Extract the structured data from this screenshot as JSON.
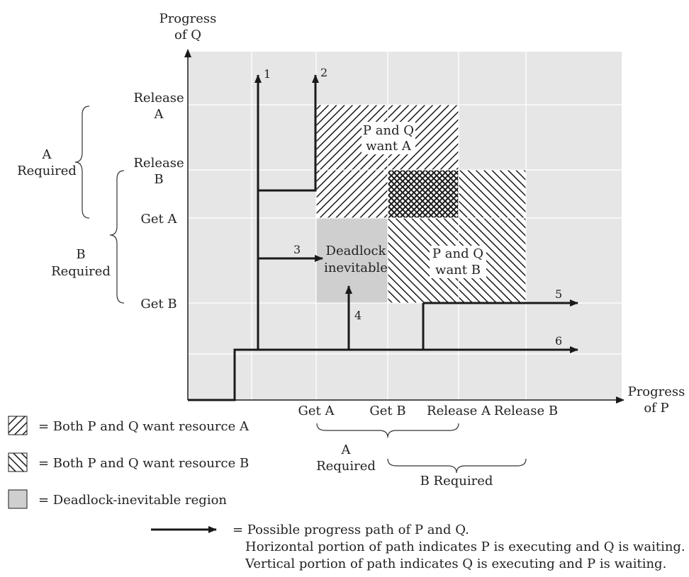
{
  "axes": {
    "y_title": [
      "Progress",
      "of Q"
    ],
    "x_title": [
      "Progress",
      "of P"
    ],
    "y_ticks": [
      [
        "Release",
        "A"
      ],
      [
        "Release",
        "B"
      ],
      [
        "Get A"
      ],
      [
        "Get B"
      ]
    ],
    "x_ticks": [
      "Get A",
      "Get B",
      "Release A",
      "Release B"
    ]
  },
  "regions": {
    "want_a": [
      "P and Q",
      "want A"
    ],
    "want_b": [
      "P and Q",
      "want B"
    ],
    "deadlock": [
      "Deadlock",
      "inevitable"
    ]
  },
  "paths": [
    "1",
    "2",
    "3",
    "4",
    "5",
    "6"
  ],
  "braces": {
    "y_a": [
      "A",
      "Required"
    ],
    "y_b": [
      "B",
      "Required"
    ],
    "x_a": [
      "A",
      "Required"
    ],
    "x_b": "B Required"
  },
  "legend": {
    "hatch_a": "= Both P and Q want resource A",
    "hatch_b": "= Both P and Q want resource B",
    "deadlock": "= Deadlock-inevitable region",
    "path": [
      "= Possible progress path of P and Q.",
      "Horizontal portion of path indicates P is executing and Q is waiting.",
      "Vertical portion of path indicates Q is executing and P is waiting."
    ]
  },
  "colors": {
    "plot_bg": "#e6e6e6",
    "deadlock": "#cfcfcf",
    "ink": "#1a1a1a"
  }
}
